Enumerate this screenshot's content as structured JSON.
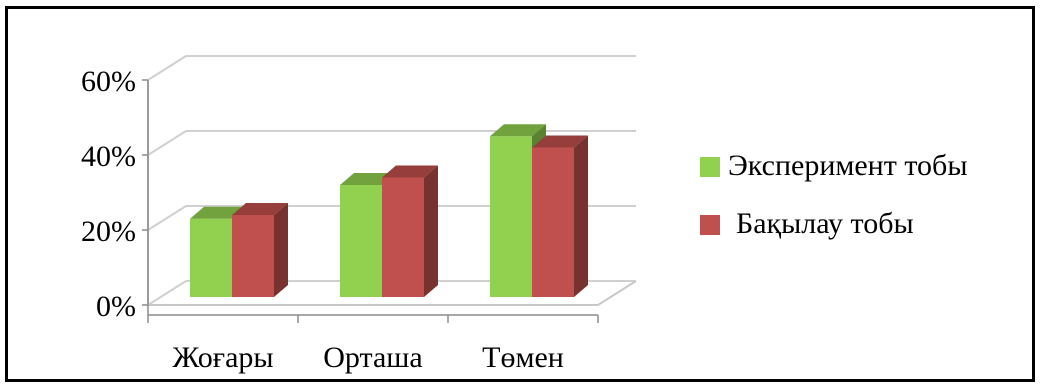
{
  "chart_data": {
    "type": "bar",
    "three_d": true,
    "categories": [
      "Жоғары",
      "Орташа",
      "Төмен"
    ],
    "series": [
      {
        "name": "Эксперимент тобы",
        "values": [
          23,
          32,
          45
        ],
        "color": "#92D050"
      },
      {
        "name": "Бақылау тобы",
        "values": [
          24,
          34,
          42
        ],
        "color": "#C0504D"
      }
    ],
    "y_ticks": [
      "0%",
      "20%",
      "40%",
      "60%"
    ],
    "ylim": [
      0,
      60
    ],
    "grid": true,
    "legend_position": "right"
  }
}
